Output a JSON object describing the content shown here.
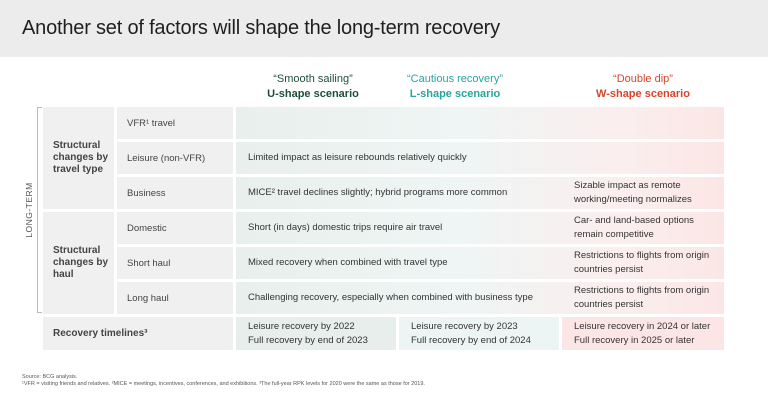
{
  "title": "Another set of factors will shape the long-term recovery",
  "scenarios": [
    {
      "quote": "“Smooth sailing”",
      "name": "U-shape scenario",
      "color": "#1e4f3a"
    },
    {
      "quote": "“Cautious recovery”",
      "name": "L-shape scenario",
      "color": "#2aa39a"
    },
    {
      "quote": "“Double dip”",
      "name": "W-shape scenario",
      "color": "#d6452b"
    }
  ],
  "side_label": "LONG-TERM",
  "groups": {
    "travel_type": "Structural changes by travel type",
    "haul": "Structural changes by haul"
  },
  "rows": {
    "vfr": {
      "label": "VFR¹ travel"
    },
    "leisure": {
      "label": "Leisure (non-VFR)",
      "common": "Limited impact as leisure rebounds relatively quickly"
    },
    "business": {
      "label": "Business",
      "common": "MICE² travel declines slightly; hybrid programs more common",
      "w": "Sizable impact as remote working/meeting normalizes"
    },
    "domestic": {
      "label": "Domestic",
      "common": "Short (in days) domestic trips require air travel",
      "w": "Car- and land-based options remain competitive"
    },
    "short_haul": {
      "label": "Short haul",
      "common": "Mixed recovery when combined with travel type",
      "w": "Restrictions to flights from origin countries persist"
    },
    "long_haul": {
      "label": "Long haul",
      "common": "Challenging recovery, especially when combined with business type",
      "w": "Restrictions to flights from origin countries persist"
    }
  },
  "timelines": {
    "label": "Recovery timelines³",
    "u": {
      "line1": "Leisure recovery by 2022",
      "line2": "Full recovery by end of 2023"
    },
    "l": {
      "line1": "Leisure recovery by 2023",
      "line2": "Full recovery by end of 2024"
    },
    "w": {
      "line1": "Leisure recovery in 2024 or later",
      "line2": "Full recovery in 2025 or later"
    }
  },
  "footnotes": {
    "source": "Source: BCG analysis.",
    "notes": "¹VFR = visiting friends and relatives. ²MICE = meetings, incentives, conferences, and exhibitions. ³The full-year RPK levels for 2020 were the same as those for 2019."
  }
}
